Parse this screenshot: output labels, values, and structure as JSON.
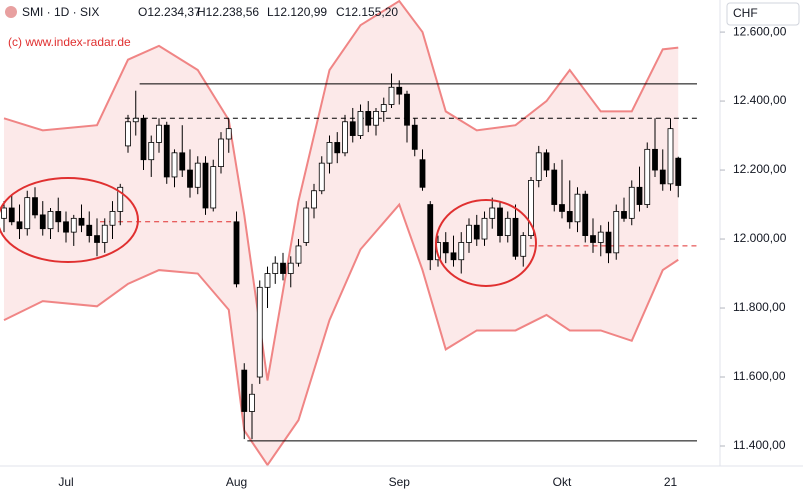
{
  "chart_data": {
    "type": "candlestick",
    "title": "SMI · 1D · SIX",
    "ohlc_labels": [
      "O12.234,37",
      "H12.238,56",
      "L12.120,99",
      "C12.155,20"
    ],
    "watermark": "(c) www.index-radar.de",
    "currency": "CHF",
    "categories": [
      null,
      null,
      null,
      null,
      null,
      null,
      null,
      null,
      "Jul",
      null,
      null,
      null,
      null,
      null,
      null,
      null,
      null,
      null,
      null,
      null,
      null,
      null,
      null,
      null,
      null,
      null,
      null,
      null,
      null,
      null,
      "Aug",
      null,
      null,
      null,
      null,
      null,
      null,
      null,
      null,
      null,
      null,
      null,
      null,
      null,
      null,
      null,
      null,
      null,
      null,
      null,
      null,
      "Sep",
      null,
      null,
      null,
      null,
      null,
      null,
      null,
      null,
      null,
      null,
      null,
      null,
      null,
      null,
      null,
      null,
      null,
      null,
      null,
      null,
      "Okt",
      null,
      null,
      null,
      null,
      null,
      null,
      null,
      null,
      null,
      null,
      null,
      null,
      null,
      "21",
      null
    ],
    "open": [
      12060,
      12090,
      12050,
      12030,
      12120,
      12070,
      12030,
      12080,
      12050,
      12020,
      12060,
      12040,
      12010,
      11990,
      12040,
      12080,
      12270,
      12340,
      12350,
      12230,
      12280,
      12330,
      12180,
      12250,
      12200,
      12150,
      12220,
      12090,
      12210,
      12290,
      12050,
      11620,
      11500,
      11600,
      11860,
      11900,
      11930,
      11900,
      11930,
      11990,
      12090,
      12140,
      12220,
      12280,
      12250,
      12340,
      12300,
      12370,
      12330,
      12370,
      12390,
      12440,
      12420,
      12330,
      12230,
      12100,
      11940,
      11990,
      11960,
      11940,
      11990,
      12040,
      12000,
      12060,
      12090,
      12010,
      12060,
      11950,
      12010,
      12170,
      12250,
      12200,
      12100,
      12080,
      12050,
      12130,
      12010,
      11990,
      12020,
      11960,
      12080,
      12060,
      12150,
      12100,
      12260,
      12200,
      12160,
      12234.37
    ],
    "high": [
      12110,
      12130,
      12100,
      12140,
      12150,
      12110,
      12090,
      12120,
      12080,
      12070,
      12100,
      12080,
      12060,
      12060,
      12110,
      12160,
      12360,
      12430,
      12360,
      12300,
      12350,
      12340,
      12260,
      12330,
      12260,
      12240,
      12240,
      12230,
      12310,
      12350,
      12080,
      11640,
      11580,
      11880,
      11920,
      11950,
      11960,
      11950,
      12000,
      12110,
      12160,
      12240,
      12300,
      12310,
      12360,
      12380,
      12390,
      12400,
      12380,
      12410,
      12480,
      12460,
      12430,
      12350,
      12260,
      12110,
      12010,
      12020,
      12010,
      12020,
      12060,
      12070,
      12080,
      12120,
      12110,
      12080,
      12100,
      12020,
      12180,
      12270,
      12260,
      12220,
      12230,
      12170,
      12150,
      12140,
      12060,
      12040,
      12050,
      12100,
      12120,
      12170,
      12210,
      12280,
      12350,
      12260,
      12350,
      12238.56
    ],
    "low": [
      12020,
      12040,
      12000,
      12010,
      12060,
      12010,
      12000,
      12020,
      11990,
      11980,
      12020,
      11990,
      11950,
      11960,
      12000,
      12040,
      12250,
      12300,
      12200,
      12180,
      12250,
      12160,
      12150,
      12180,
      12120,
      12130,
      12070,
      12080,
      12190,
      12250,
      11860,
      11420,
      11420,
      11580,
      11800,
      11870,
      11880,
      11860,
      11920,
      11980,
      12060,
      12130,
      12190,
      12220,
      12240,
      12280,
      12290,
      12310,
      12300,
      12340,
      12380,
      12390,
      12280,
      12240,
      12140,
      11910,
      11920,
      11930,
      11920,
      11900,
      11960,
      11980,
      11980,
      12030,
      11990,
      11990,
      11940,
      11920,
      12000,
      12150,
      12180,
      12080,
      12060,
      12030,
      12020,
      11990,
      11960,
      11950,
      11930,
      11940,
      12050,
      12040,
      12080,
      12090,
      12180,
      12140,
      12140,
      12120.99
    ],
    "close": [
      12090,
      12050,
      12030,
      12120,
      12070,
      12030,
      12080,
      12050,
      12020,
      12060,
      12040,
      12010,
      11990,
      12040,
      12080,
      12150,
      12340,
      12350,
      12230,
      12280,
      12330,
      12180,
      12250,
      12200,
      12150,
      12220,
      12090,
      12210,
      12290,
      12320,
      11870,
      11500,
      11550,
      11860,
      11900,
      11930,
      11900,
      11930,
      11980,
      12090,
      12140,
      12220,
      12280,
      12250,
      12340,
      12300,
      12370,
      12330,
      12370,
      12390,
      12440,
      12420,
      12330,
      12260,
      12150,
      11940,
      11990,
      11960,
      11940,
      11990,
      12040,
      12000,
      12060,
      12090,
      12010,
      12060,
      11950,
      12010,
      12170,
      12250,
      12200,
      12100,
      12080,
      12050,
      12130,
      12010,
      11990,
      12020,
      11960,
      12080,
      12060,
      12150,
      12100,
      12260,
      12200,
      12160,
      12320,
      12155.2
    ],
    "bands": {
      "x": [
        0,
        5,
        12,
        16,
        20,
        25,
        29,
        31,
        34,
        38,
        42,
        46,
        51,
        54,
        57,
        61,
        66,
        70,
        73,
        77,
        81,
        85,
        87
      ],
      "upper": [
        12350,
        12315,
        12330,
        12520,
        12560,
        12490,
        12345,
        12070,
        11590,
        12110,
        12490,
        12620,
        12690,
        12600,
        12370,
        12315,
        12330,
        12400,
        12490,
        12370,
        12370,
        12550,
        12555
      ],
      "lower": [
        11765,
        11820,
        11805,
        11870,
        11910,
        11900,
        11795,
        11445,
        11345,
        11475,
        11765,
        11970,
        12100,
        11910,
        11680,
        11735,
        11735,
        11780,
        11735,
        11735,
        11705,
        11910,
        11940
      ]
    },
    "levels": [
      {
        "value": 12450,
        "from": 17.5,
        "style": "solid",
        "color": "#000000"
      },
      {
        "value": 12350,
        "from": 15.6,
        "style": "dashed",
        "color": "#000000"
      },
      {
        "value": 11415,
        "from": 31.4,
        "style": "solid",
        "color": "#000000"
      },
      {
        "value": 12050,
        "from": 12.4,
        "to": 29.5,
        "style": "dashed",
        "color": "#e03030"
      },
      {
        "value": 11980,
        "from": 67.8,
        "to": 89.5,
        "style": "dashed",
        "color": "#e03030"
      }
    ],
    "ylim": [
      11342,
      12693
    ],
    "yticks": [
      {
        "value": 11400,
        "label": "11.400,00"
      },
      {
        "value": 11600,
        "label": "11.600,00"
      },
      {
        "value": 11800,
        "label": "11.800,00"
      },
      {
        "value": 12000,
        "label": "12.000,00"
      },
      {
        "value": 12200,
        "label": "12.200,00"
      },
      {
        "value": 12400,
        "label": "12.400,00"
      },
      {
        "value": 12600,
        "label": "12.600,00"
      }
    ],
    "up_color": "#ffffff",
    "down_color": "#000000",
    "band_color": "#f08585"
  }
}
